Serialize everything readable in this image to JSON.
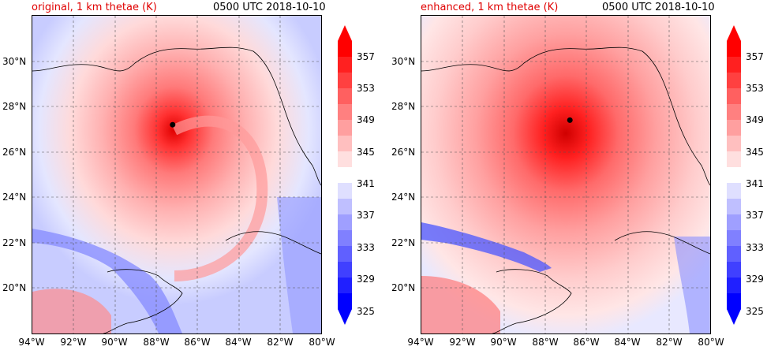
{
  "panels": [
    {
      "title_left": "original, 1 km thetae (K)",
      "title_right": "0500 UTC 2018-10-10",
      "storm_center": {
        "lon": -87.2,
        "lat": 27.2
      }
    },
    {
      "title_left": "enhanced, 1 km thetae (K)",
      "title_right": "0500 UTC 2018-10-10",
      "storm_center": {
        "lon": -86.8,
        "lat": 27.4
      }
    }
  ],
  "map_extent": {
    "lon_min": -94,
    "lon_max": -80,
    "lat_min": 18,
    "lat_max": 32
  },
  "x_ticks": [
    "94°W",
    "92°W",
    "90°W",
    "88°W",
    "86°W",
    "84°W",
    "82°W",
    "80°W"
  ],
  "y_ticks": [
    "30°N",
    "28°N",
    "26°N",
    "24°N",
    "22°N",
    "20°N"
  ],
  "colorbar": {
    "labels": [
      "357",
      "353",
      "349",
      "345",
      "341",
      "337",
      "333",
      "329",
      "325"
    ],
    "min": 325,
    "max": 359,
    "colors": {
      "deep_red": "#ff0000",
      "white": "#ffffff",
      "deep_blue": "#0000ff"
    }
  },
  "colors": {
    "title_accent": "#e00000",
    "grid_line": "#555555",
    "coastline": "#000000",
    "storm_marker": "#000000"
  }
}
